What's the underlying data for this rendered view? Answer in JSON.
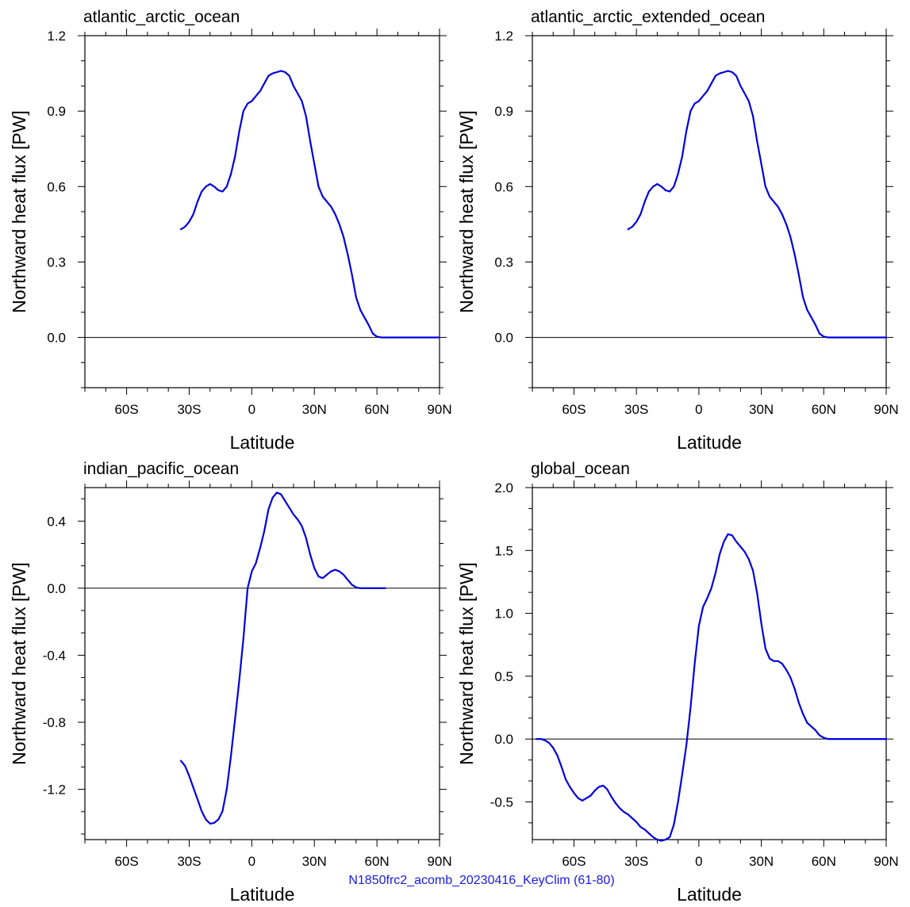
{
  "footer": "N1850frc2_acomb_20230416_KeyClim (61-80)",
  "line_color": "#0000dd",
  "chart_data": [
    {
      "type": "line",
      "title": "atlantic_arctic_ocean",
      "xlabel": "Latitude",
      "ylabel": "Northward heat flux [PW]",
      "xlim": [
        -80,
        90
      ],
      "ylim": [
        -0.2,
        1.2
      ],
      "x_ticks": [
        -60,
        -30,
        0,
        30,
        60,
        90
      ],
      "x_tick_labels": [
        "60S",
        "30S",
        "0",
        "30N",
        "60N",
        "90N"
      ],
      "y_ticks": [
        0.0,
        0.3,
        0.6,
        0.9,
        1.2
      ],
      "y_tick_labels": [
        "0.0",
        "0.3",
        "0.6",
        "0.9",
        "1.2"
      ],
      "zero_line": true,
      "series": [
        {
          "x": [
            -34,
            -32,
            -30,
            -28,
            -26,
            -24,
            -22,
            -20,
            -18,
            -16,
            -14,
            -12,
            -10,
            -8,
            -6,
            -4,
            -2,
            0,
            2,
            4,
            6,
            8,
            10,
            12,
            14,
            16,
            18,
            20,
            22,
            24,
            26,
            28,
            30,
            32,
            34,
            36,
            38,
            40,
            42,
            44,
            46,
            48,
            50,
            52,
            54,
            56,
            58,
            60,
            62,
            64,
            66,
            68,
            70,
            72,
            74,
            76,
            78,
            80,
            84,
            88,
            90
          ],
          "y": [
            0.43,
            0.44,
            0.46,
            0.49,
            0.54,
            0.58,
            0.6,
            0.61,
            0.6,
            0.585,
            0.58,
            0.6,
            0.65,
            0.72,
            0.82,
            0.9,
            0.93,
            0.94,
            0.96,
            0.98,
            1.01,
            1.04,
            1.05,
            1.055,
            1.06,
            1.055,
            1.04,
            1.0,
            0.97,
            0.94,
            0.88,
            0.78,
            0.69,
            0.6,
            0.56,
            0.54,
            0.52,
            0.49,
            0.45,
            0.4,
            0.33,
            0.25,
            0.16,
            0.11,
            0.08,
            0.05,
            0.015,
            0.003,
            0.0,
            0.0,
            0.0,
            0.0,
            0.0,
            0.0,
            0.0,
            0.0,
            0.0,
            0.0,
            0.0,
            0.0,
            0.0
          ]
        }
      ]
    },
    {
      "type": "line",
      "title": "atlantic_arctic_extended_ocean",
      "xlabel": "Latitude",
      "ylabel": "Northward heat flux [PW]",
      "xlim": [
        -80,
        90
      ],
      "ylim": [
        -0.2,
        1.2
      ],
      "x_ticks": [
        -60,
        -30,
        0,
        30,
        60,
        90
      ],
      "x_tick_labels": [
        "60S",
        "30S",
        "0",
        "30N",
        "60N",
        "90N"
      ],
      "y_ticks": [
        0.0,
        0.3,
        0.6,
        0.9,
        1.2
      ],
      "y_tick_labels": [
        "0.0",
        "0.3",
        "0.6",
        "0.9",
        "1.2"
      ],
      "zero_line": true,
      "series": [
        {
          "x": [
            -34,
            -32,
            -30,
            -28,
            -26,
            -24,
            -22,
            -20,
            -18,
            -16,
            -14,
            -12,
            -10,
            -8,
            -6,
            -4,
            -2,
            0,
            2,
            4,
            6,
            8,
            10,
            12,
            14,
            16,
            18,
            20,
            22,
            24,
            26,
            28,
            30,
            32,
            34,
            36,
            38,
            40,
            42,
            44,
            46,
            48,
            50,
            52,
            54,
            56,
            58,
            60,
            62,
            64,
            66,
            68,
            70,
            72,
            74,
            76,
            78,
            80,
            84,
            88,
            90
          ],
          "y": [
            0.43,
            0.44,
            0.46,
            0.49,
            0.54,
            0.58,
            0.6,
            0.61,
            0.6,
            0.585,
            0.58,
            0.6,
            0.65,
            0.72,
            0.82,
            0.9,
            0.93,
            0.94,
            0.96,
            0.98,
            1.01,
            1.04,
            1.05,
            1.055,
            1.06,
            1.055,
            1.04,
            1.0,
            0.97,
            0.94,
            0.88,
            0.78,
            0.69,
            0.6,
            0.56,
            0.54,
            0.52,
            0.49,
            0.45,
            0.4,
            0.33,
            0.25,
            0.16,
            0.11,
            0.08,
            0.05,
            0.015,
            0.003,
            0.0,
            0.0,
            0.0,
            0.0,
            0.0,
            0.0,
            0.0,
            0.0,
            0.0,
            0.0,
            0.0,
            0.0,
            0.0
          ]
        }
      ]
    },
    {
      "type": "line",
      "title": "indian_pacific_ocean",
      "xlabel": "Latitude",
      "ylabel": "Northward heat flux [PW]",
      "xlim": [
        -80,
        90
      ],
      "ylim": [
        -1.5,
        0.6
      ],
      "x_ticks": [
        -60,
        -30,
        0,
        30,
        60,
        90
      ],
      "x_tick_labels": [
        "60S",
        "30S",
        "0",
        "30N",
        "60N",
        "90N"
      ],
      "y_ticks": [
        -1.2,
        -0.8,
        -0.4,
        0.0,
        0.4
      ],
      "y_tick_labels": [
        "-1.2",
        "-0.8",
        "-0.4",
        "0.0",
        "0.4"
      ],
      "zero_line": true,
      "series": [
        {
          "x": [
            -34,
            -32,
            -30,
            -28,
            -26,
            -24,
            -22,
            -20,
            -18,
            -16,
            -14,
            -12,
            -10,
            -8,
            -6,
            -4,
            -2,
            0,
            2,
            4,
            6,
            8,
            10,
            12,
            14,
            16,
            18,
            20,
            22,
            24,
            26,
            28,
            30,
            32,
            34,
            36,
            38,
            40,
            42,
            44,
            46,
            48,
            50,
            52,
            54,
            56,
            58,
            60,
            62,
            64
          ],
          "y": [
            -1.03,
            -1.06,
            -1.12,
            -1.19,
            -1.26,
            -1.33,
            -1.38,
            -1.405,
            -1.4,
            -1.38,
            -1.33,
            -1.2,
            -1.0,
            -0.78,
            -0.55,
            -0.3,
            0.0,
            0.1,
            0.15,
            0.24,
            0.34,
            0.47,
            0.54,
            0.57,
            0.56,
            0.52,
            0.48,
            0.44,
            0.41,
            0.37,
            0.3,
            0.2,
            0.12,
            0.07,
            0.06,
            0.08,
            0.1,
            0.11,
            0.1,
            0.08,
            0.05,
            0.02,
            0.005,
            0.0,
            0.0,
            0.0,
            0.0,
            0.0,
            0.0,
            0.0
          ]
        }
      ]
    },
    {
      "type": "line",
      "title": "global_ocean",
      "xlabel": "Latitude",
      "ylabel": "Northward heat flux [PW]",
      "xlim": [
        -80,
        90
      ],
      "ylim": [
        -0.8,
        2.0
      ],
      "x_ticks": [
        -60,
        -30,
        0,
        30,
        60,
        90
      ],
      "x_tick_labels": [
        "60S",
        "30S",
        "0",
        "30N",
        "60N",
        "90N"
      ],
      "y_ticks": [
        -0.5,
        0.0,
        0.5,
        1.0,
        1.5,
        2.0
      ],
      "y_tick_labels": [
        "-0.5",
        "0.0",
        "0.5",
        "1.0",
        "1.5",
        "2.0"
      ],
      "zero_line": true,
      "series": [
        {
          "x": [
            -78,
            -76,
            -74,
            -72,
            -70,
            -68,
            -66,
            -64,
            -62,
            -60,
            -58,
            -56,
            -54,
            -52,
            -50,
            -48,
            -46,
            -44,
            -42,
            -40,
            -38,
            -36,
            -34,
            -32,
            -30,
            -28,
            -26,
            -24,
            -22,
            -20,
            -18,
            -16,
            -14,
            -12,
            -10,
            -8,
            -6,
            -4,
            -2,
            0,
            2,
            4,
            6,
            8,
            10,
            12,
            14,
            16,
            18,
            20,
            22,
            24,
            26,
            28,
            30,
            32,
            34,
            36,
            38,
            40,
            42,
            44,
            46,
            48,
            50,
            52,
            54,
            56,
            58,
            60,
            62,
            64,
            66,
            68,
            70,
            72,
            74,
            76,
            78,
            80,
            84,
            88,
            90
          ],
          "y": [
            0.0,
            0.0,
            -0.01,
            -0.03,
            -0.07,
            -0.13,
            -0.22,
            -0.32,
            -0.38,
            -0.43,
            -0.47,
            -0.49,
            -0.47,
            -0.45,
            -0.41,
            -0.38,
            -0.37,
            -0.4,
            -0.46,
            -0.51,
            -0.55,
            -0.58,
            -0.6,
            -0.63,
            -0.66,
            -0.7,
            -0.72,
            -0.75,
            -0.78,
            -0.8,
            -0.81,
            -0.8,
            -0.78,
            -0.68,
            -0.5,
            -0.28,
            -0.05,
            0.25,
            0.6,
            0.9,
            1.05,
            1.12,
            1.2,
            1.32,
            1.47,
            1.57,
            1.63,
            1.62,
            1.57,
            1.53,
            1.49,
            1.43,
            1.34,
            1.16,
            0.92,
            0.72,
            0.64,
            0.62,
            0.62,
            0.6,
            0.55,
            0.49,
            0.4,
            0.29,
            0.2,
            0.13,
            0.1,
            0.07,
            0.03,
            0.01,
            0.0,
            0.0,
            0.0,
            0.0,
            0.0,
            0.0,
            0.0,
            0.0,
            0.0,
            0.0,
            0.0,
            0.0,
            0.0
          ]
        }
      ]
    }
  ]
}
